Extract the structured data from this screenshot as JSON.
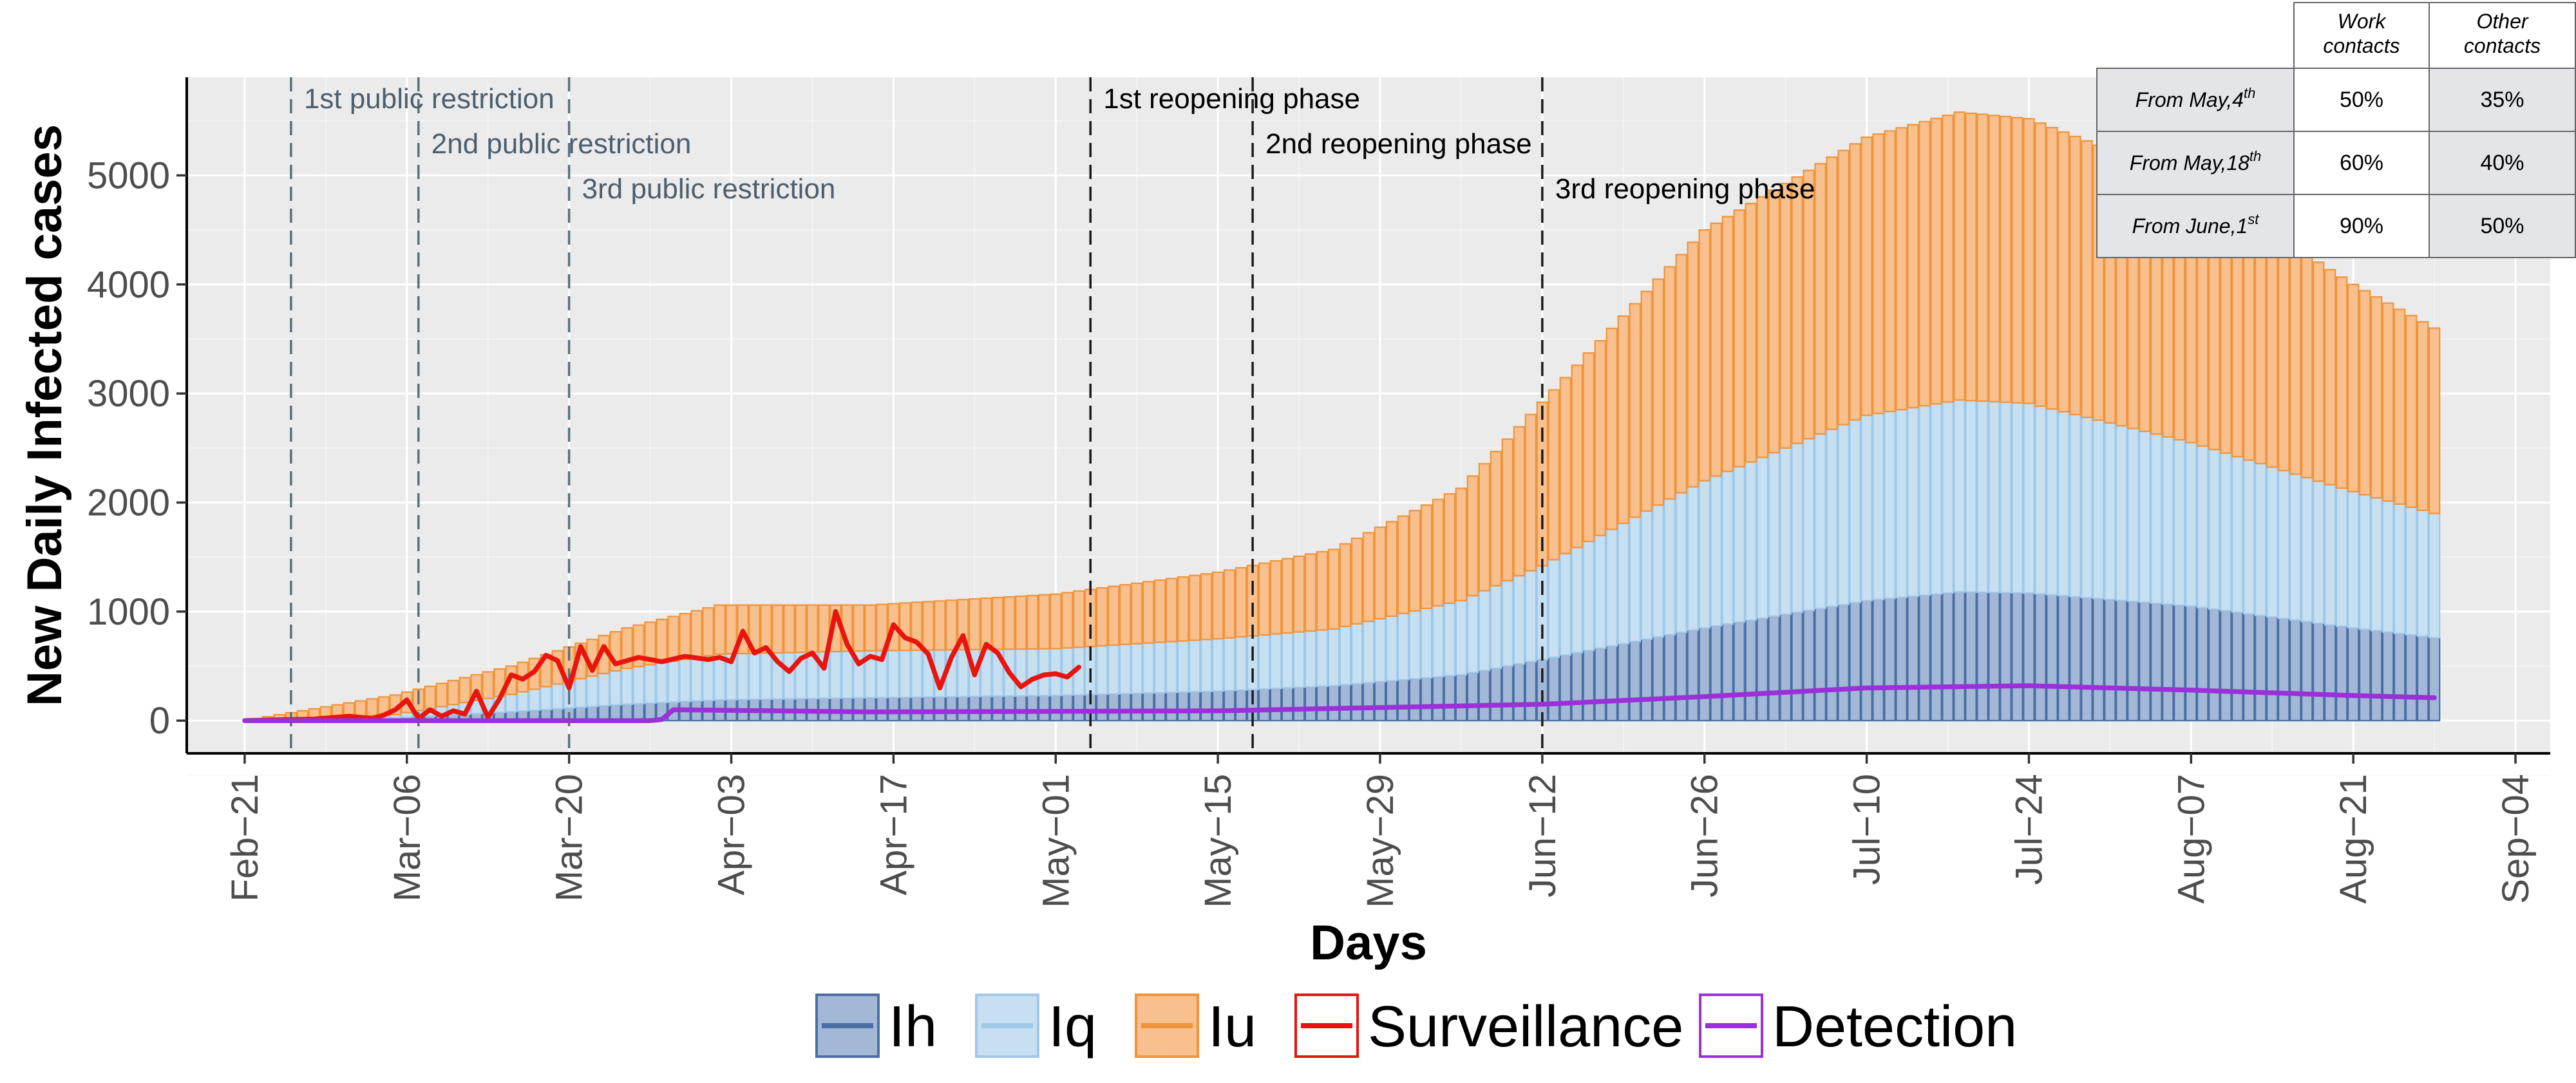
{
  "chart_data": {
    "type": "bar",
    "stacked": true,
    "title": "",
    "xlabel": "Days",
    "ylabel": "New Daily Infected cases",
    "x_start_date": "2020-02-21",
    "x_end_date": "2020-08-28",
    "xlim": [
      "2020-02-16",
      "2020-09-07"
    ],
    "ylim": [
      -300,
      5900
    ],
    "y_ticks": [
      0,
      1000,
      2000,
      3000,
      4000,
      5000
    ],
    "y_tick_labels": [
      "0",
      "1000",
      "2000",
      "3000",
      "4000",
      "5000"
    ],
    "x_tick_dates": [
      "2020-02-21",
      "2020-03-06",
      "2020-03-20",
      "2020-04-03",
      "2020-04-17",
      "2020-05-01",
      "2020-05-15",
      "2020-05-29",
      "2020-06-12",
      "2020-06-26",
      "2020-07-10",
      "2020-07-24",
      "2020-08-07",
      "2020-08-21",
      "2020-09-04"
    ],
    "x_tick_labels": [
      "Feb−21",
      "Mar−06",
      "Mar−20",
      "Apr−03",
      "Apr−17",
      "May−01",
      "May−15",
      "May−29",
      "Jun−12",
      "Jun−26",
      "Jul−10",
      "Jul−24",
      "Aug−07",
      "Aug−21",
      "Sep−04"
    ],
    "grid": true,
    "legend_position": "bottom",
    "series": [
      {
        "name": "Ih",
        "kind": "bar",
        "color": "#4a6fa5",
        "fill": "#a3b8d6",
        "points": [
          [
            "2020-02-21",
            0
          ],
          [
            "2020-03-05",
            25
          ],
          [
            "2020-03-15",
            80
          ],
          [
            "2020-03-25",
            150
          ],
          [
            "2020-04-02",
            190
          ],
          [
            "2020-04-15",
            210
          ],
          [
            "2020-05-01",
            230
          ],
          [
            "2020-05-15",
            270
          ],
          [
            "2020-05-25",
            320
          ],
          [
            "2020-06-05",
            420
          ],
          [
            "2020-06-12",
            560
          ],
          [
            "2020-06-26",
            850
          ],
          [
            "2020-07-10",
            1100
          ],
          [
            "2020-07-18",
            1180
          ],
          [
            "2020-07-24",
            1170
          ],
          [
            "2020-08-07",
            1050
          ],
          [
            "2020-08-21",
            850
          ],
          [
            "2020-08-28",
            760
          ]
        ]
      },
      {
        "name": "Iq",
        "kind": "bar",
        "color": "#a0c8e8",
        "fill": "#c6dff1",
        "points": [
          [
            "2020-02-21",
            0
          ],
          [
            "2020-03-05",
            30
          ],
          [
            "2020-03-15",
            160
          ],
          [
            "2020-03-25",
            330
          ],
          [
            "2020-04-02",
            420
          ],
          [
            "2020-04-15",
            430
          ],
          [
            "2020-05-01",
            430
          ],
          [
            "2020-05-15",
            480
          ],
          [
            "2020-05-25",
            520
          ],
          [
            "2020-06-05",
            680
          ],
          [
            "2020-06-12",
            860
          ],
          [
            "2020-06-26",
            1350
          ],
          [
            "2020-07-10",
            1700
          ],
          [
            "2020-07-18",
            1760
          ],
          [
            "2020-07-24",
            1740
          ],
          [
            "2020-08-07",
            1500
          ],
          [
            "2020-08-21",
            1250
          ],
          [
            "2020-08-28",
            1140
          ]
        ]
      },
      {
        "name": "Iu",
        "kind": "bar",
        "color": "#f0943a",
        "fill": "#f7c08e",
        "points": [
          [
            "2020-02-21",
            0
          ],
          [
            "2020-03-05",
            180
          ],
          [
            "2020-03-15",
            260
          ],
          [
            "2020-03-25",
            370
          ],
          [
            "2020-04-02",
            450
          ],
          [
            "2020-04-15",
            420
          ],
          [
            "2020-05-01",
            500
          ],
          [
            "2020-05-15",
            610
          ],
          [
            "2020-05-25",
            730
          ],
          [
            "2020-06-05",
            1030
          ],
          [
            "2020-06-12",
            1500
          ],
          [
            "2020-06-26",
            2300
          ],
          [
            "2020-07-10",
            2550
          ],
          [
            "2020-07-18",
            2640
          ],
          [
            "2020-07-24",
            2610
          ],
          [
            "2020-08-07",
            2400
          ],
          [
            "2020-08-21",
            1900
          ],
          [
            "2020-08-28",
            1700
          ]
        ]
      },
      {
        "name": "Surveillance",
        "kind": "line",
        "color": "#e8150f",
        "points": [
          [
            "2020-02-21",
            0
          ],
          [
            "2020-02-23",
            5
          ],
          [
            "2020-02-25",
            10
          ],
          [
            "2020-02-27",
            15
          ],
          [
            "2020-03-01",
            40
          ],
          [
            "2020-03-03",
            20
          ],
          [
            "2020-03-04",
            50
          ],
          [
            "2020-03-05",
            100
          ],
          [
            "2020-03-06",
            190
          ],
          [
            "2020-03-07",
            20
          ],
          [
            "2020-03-08",
            100
          ],
          [
            "2020-03-09",
            40
          ],
          [
            "2020-03-10",
            90
          ],
          [
            "2020-03-11",
            60
          ],
          [
            "2020-03-12",
            270
          ],
          [
            "2020-03-13",
            30
          ],
          [
            "2020-03-14",
            200
          ],
          [
            "2020-03-15",
            420
          ],
          [
            "2020-03-16",
            380
          ],
          [
            "2020-03-17",
            450
          ],
          [
            "2020-03-18",
            600
          ],
          [
            "2020-03-19",
            550
          ],
          [
            "2020-03-20",
            300
          ],
          [
            "2020-03-21",
            680
          ],
          [
            "2020-03-22",
            460
          ],
          [
            "2020-03-23",
            680
          ],
          [
            "2020-03-24",
            520
          ],
          [
            "2020-03-26",
            580
          ],
          [
            "2020-03-28",
            540
          ],
          [
            "2020-03-30",
            590
          ],
          [
            "2020-04-01",
            560
          ],
          [
            "2020-04-02",
            580
          ],
          [
            "2020-04-03",
            540
          ],
          [
            "2020-04-04",
            820
          ],
          [
            "2020-04-05",
            620
          ],
          [
            "2020-04-06",
            670
          ],
          [
            "2020-04-07",
            540
          ],
          [
            "2020-04-08",
            450
          ],
          [
            "2020-04-09",
            570
          ],
          [
            "2020-04-10",
            620
          ],
          [
            "2020-04-11",
            480
          ],
          [
            "2020-04-12",
            1000
          ],
          [
            "2020-04-13",
            700
          ],
          [
            "2020-04-14",
            520
          ],
          [
            "2020-04-15",
            590
          ],
          [
            "2020-04-16",
            560
          ],
          [
            "2020-04-17",
            880
          ],
          [
            "2020-04-18",
            760
          ],
          [
            "2020-04-19",
            720
          ],
          [
            "2020-04-20",
            610
          ],
          [
            "2020-04-21",
            300
          ],
          [
            "2020-04-22",
            580
          ],
          [
            "2020-04-23",
            780
          ],
          [
            "2020-04-24",
            420
          ],
          [
            "2020-04-25",
            700
          ],
          [
            "2020-04-26",
            620
          ],
          [
            "2020-04-27",
            440
          ],
          [
            "2020-04-28",
            310
          ],
          [
            "2020-04-29",
            380
          ],
          [
            "2020-04-30",
            420
          ],
          [
            "2020-05-01",
            430
          ],
          [
            "2020-05-02",
            400
          ],
          [
            "2020-05-03",
            490
          ]
        ]
      },
      {
        "name": "Detection",
        "kind": "line",
        "color": "#9b30d9",
        "points": [
          [
            "2020-02-21",
            0
          ],
          [
            "2020-03-27",
            0
          ],
          [
            "2020-03-28",
            10
          ],
          [
            "2020-03-29",
            100
          ],
          [
            "2020-04-15",
            80
          ],
          [
            "2020-05-15",
            90
          ],
          [
            "2020-06-12",
            150
          ],
          [
            "2020-06-26",
            220
          ],
          [
            "2020-07-10",
            300
          ],
          [
            "2020-07-24",
            320
          ],
          [
            "2020-08-07",
            280
          ],
          [
            "2020-08-21",
            230
          ],
          [
            "2020-08-28",
            210
          ]
        ]
      }
    ],
    "annotations": [
      {
        "kind": "vline",
        "date": "2020-02-25",
        "style": "public",
        "label": "1st public restriction",
        "label_row": 0
      },
      {
        "kind": "vline",
        "date": "2020-03-07",
        "style": "public",
        "label": "2nd public restriction",
        "label_row": 1
      },
      {
        "kind": "vline",
        "date": "2020-03-20",
        "style": "public",
        "label": "3rd public restriction",
        "label_row": 2
      },
      {
        "kind": "vline",
        "date": "2020-05-04",
        "style": "reopening",
        "label": "1st reopening phase",
        "label_row": 0
      },
      {
        "kind": "vline",
        "date": "2020-05-18",
        "style": "reopening",
        "label": "2nd reopening phase",
        "label_row": 1
      },
      {
        "kind": "vline",
        "date": "2020-06-12",
        "style": "reopening",
        "label": "3rd reopening phase",
        "label_row": 2
      }
    ],
    "inset_table": {
      "columns": [
        "",
        "Work contacts",
        "Other contacts"
      ],
      "column_lines": [
        [],
        [
          "Work",
          "contacts"
        ],
        [
          "Other",
          "contacts"
        ]
      ],
      "rows": [
        {
          "label_main": "From May,4",
          "label_sup": "th",
          "values": [
            "50%",
            "35%"
          ]
        },
        {
          "label_main": "From May,18",
          "label_sup": "th",
          "values": [
            "60%",
            "40%"
          ]
        },
        {
          "label_main": "From June,1",
          "label_sup": "st",
          "values": [
            "90%",
            "50%"
          ]
        }
      ]
    }
  }
}
